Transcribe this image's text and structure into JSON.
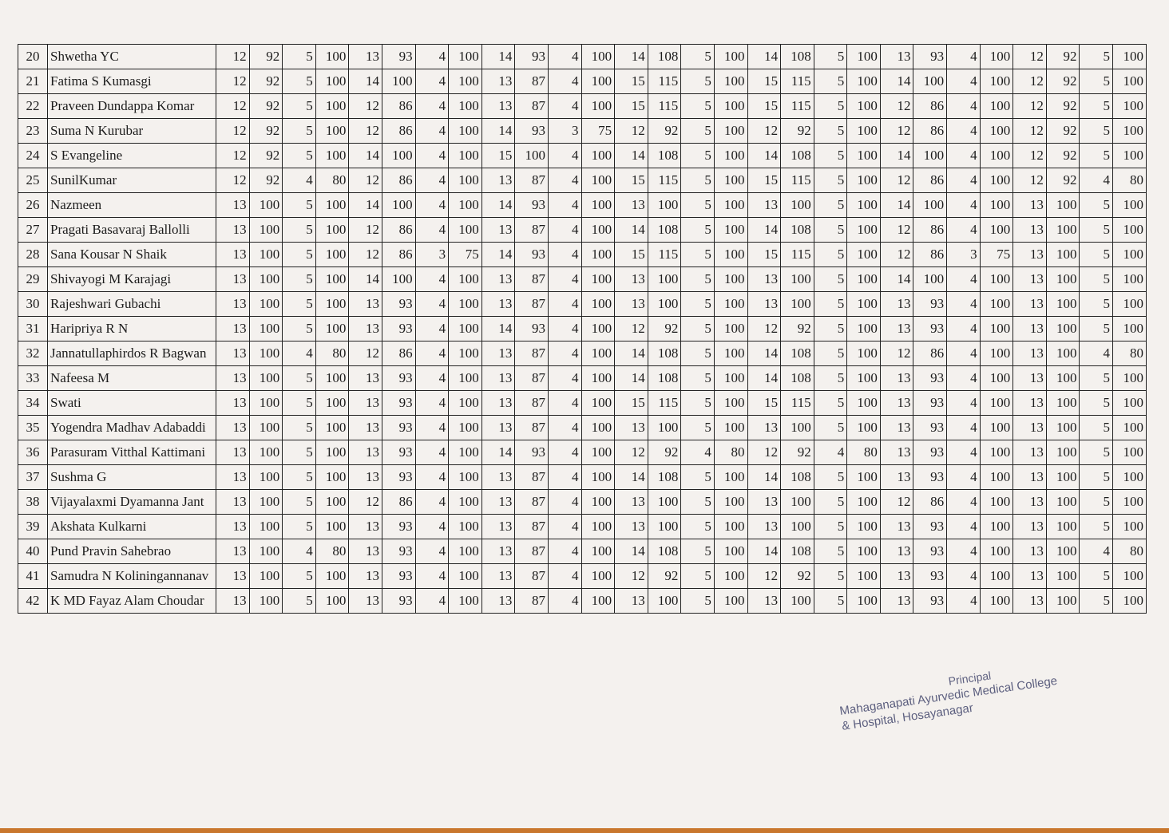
{
  "table": {
    "rows": [
      {
        "sn": 20,
        "name": "Shwetha YC",
        "cells": [
          12,
          92,
          5,
          100,
          13,
          93,
          4,
          100,
          14,
          93,
          4,
          100,
          14,
          108,
          5,
          100,
          14,
          108,
          5,
          100,
          13,
          93,
          4,
          100,
          12,
          92,
          5,
          100
        ]
      },
      {
        "sn": 21,
        "name": "Fatima S Kumasgi",
        "cells": [
          12,
          92,
          5,
          100,
          14,
          100,
          4,
          100,
          13,
          87,
          4,
          100,
          15,
          115,
          5,
          100,
          15,
          115,
          5,
          100,
          14,
          100,
          4,
          100,
          12,
          92,
          5,
          100
        ]
      },
      {
        "sn": 22,
        "name": "Praveen Dundappa Komar",
        "cells": [
          12,
          92,
          5,
          100,
          12,
          86,
          4,
          100,
          13,
          87,
          4,
          100,
          15,
          115,
          5,
          100,
          15,
          115,
          5,
          100,
          12,
          86,
          4,
          100,
          12,
          92,
          5,
          100
        ]
      },
      {
        "sn": 23,
        "name": "Suma N Kurubar",
        "cells": [
          12,
          92,
          5,
          100,
          12,
          86,
          4,
          100,
          14,
          93,
          3,
          75,
          12,
          92,
          5,
          100,
          12,
          92,
          5,
          100,
          12,
          86,
          4,
          100,
          12,
          92,
          5,
          100
        ]
      },
      {
        "sn": 24,
        "name": "S Evangeline",
        "cells": [
          12,
          92,
          5,
          100,
          14,
          100,
          4,
          100,
          15,
          100,
          4,
          100,
          14,
          108,
          5,
          100,
          14,
          108,
          5,
          100,
          14,
          100,
          4,
          100,
          12,
          92,
          5,
          100
        ]
      },
      {
        "sn": 25,
        "name": "SunilKumar",
        "cells": [
          12,
          92,
          4,
          80,
          12,
          86,
          4,
          100,
          13,
          87,
          4,
          100,
          15,
          115,
          5,
          100,
          15,
          115,
          5,
          100,
          12,
          86,
          4,
          100,
          12,
          92,
          4,
          80
        ]
      },
      {
        "sn": 26,
        "name": "Nazmeen",
        "cells": [
          13,
          100,
          5,
          100,
          14,
          100,
          4,
          100,
          14,
          93,
          4,
          100,
          13,
          100,
          5,
          100,
          13,
          100,
          5,
          100,
          14,
          100,
          4,
          100,
          13,
          100,
          5,
          100
        ]
      },
      {
        "sn": 27,
        "name": "Pragati Basavaraj Ballolli",
        "cells": [
          13,
          100,
          5,
          100,
          12,
          86,
          4,
          100,
          13,
          87,
          4,
          100,
          14,
          108,
          5,
          100,
          14,
          108,
          5,
          100,
          12,
          86,
          4,
          100,
          13,
          100,
          5,
          100
        ]
      },
      {
        "sn": 28,
        "name": "Sana Kousar N Shaik",
        "cells": [
          13,
          100,
          5,
          100,
          12,
          86,
          3,
          75,
          14,
          93,
          4,
          100,
          15,
          115,
          5,
          100,
          15,
          115,
          5,
          100,
          12,
          86,
          3,
          75,
          13,
          100,
          5,
          100
        ]
      },
      {
        "sn": 29,
        "name": "Shivayogi M Karajagi",
        "cells": [
          13,
          100,
          5,
          100,
          14,
          100,
          4,
          100,
          13,
          87,
          4,
          100,
          13,
          100,
          5,
          100,
          13,
          100,
          5,
          100,
          14,
          100,
          4,
          100,
          13,
          100,
          5,
          100
        ]
      },
      {
        "sn": 30,
        "name": "Rajeshwari Gubachi",
        "cells": [
          13,
          100,
          5,
          100,
          13,
          93,
          4,
          100,
          13,
          87,
          4,
          100,
          13,
          100,
          5,
          100,
          13,
          100,
          5,
          100,
          13,
          93,
          4,
          100,
          13,
          100,
          5,
          100
        ]
      },
      {
        "sn": 31,
        "name": "Haripriya R N",
        "cells": [
          13,
          100,
          5,
          100,
          13,
          93,
          4,
          100,
          14,
          93,
          4,
          100,
          12,
          92,
          5,
          100,
          12,
          92,
          5,
          100,
          13,
          93,
          4,
          100,
          13,
          100,
          5,
          100
        ]
      },
      {
        "sn": 32,
        "name": "Jannatullaphirdos R Bagwan",
        "cells": [
          13,
          100,
          4,
          80,
          12,
          86,
          4,
          100,
          13,
          87,
          4,
          100,
          14,
          108,
          5,
          100,
          14,
          108,
          5,
          100,
          12,
          86,
          4,
          100,
          13,
          100,
          4,
          80
        ]
      },
      {
        "sn": 33,
        "name": "Nafeesa M",
        "cells": [
          13,
          100,
          5,
          100,
          13,
          93,
          4,
          100,
          13,
          87,
          4,
          100,
          14,
          108,
          5,
          100,
          14,
          108,
          5,
          100,
          13,
          93,
          4,
          100,
          13,
          100,
          5,
          100
        ]
      },
      {
        "sn": 34,
        "name": "Swati",
        "cells": [
          13,
          100,
          5,
          100,
          13,
          93,
          4,
          100,
          13,
          87,
          4,
          100,
          15,
          115,
          5,
          100,
          15,
          115,
          5,
          100,
          13,
          93,
          4,
          100,
          13,
          100,
          5,
          100
        ]
      },
      {
        "sn": 35,
        "name": "Yogendra Madhav Adabaddi",
        "cells": [
          13,
          100,
          5,
          100,
          13,
          93,
          4,
          100,
          13,
          87,
          4,
          100,
          13,
          100,
          5,
          100,
          13,
          100,
          5,
          100,
          13,
          93,
          4,
          100,
          13,
          100,
          5,
          100
        ]
      },
      {
        "sn": 36,
        "name": "Parasuram Vitthal Kattimani",
        "cells": [
          13,
          100,
          5,
          100,
          13,
          93,
          4,
          100,
          14,
          93,
          4,
          100,
          12,
          92,
          4,
          80,
          12,
          92,
          4,
          80,
          13,
          93,
          4,
          100,
          13,
          100,
          5,
          100
        ]
      },
      {
        "sn": 37,
        "name": "Sushma G",
        "cells": [
          13,
          100,
          5,
          100,
          13,
          93,
          4,
          100,
          13,
          87,
          4,
          100,
          14,
          108,
          5,
          100,
          14,
          108,
          5,
          100,
          13,
          93,
          4,
          100,
          13,
          100,
          5,
          100
        ]
      },
      {
        "sn": 38,
        "name": "Vijayalaxmi Dyamanna Jant",
        "cells": [
          13,
          100,
          5,
          100,
          12,
          86,
          4,
          100,
          13,
          87,
          4,
          100,
          13,
          100,
          5,
          100,
          13,
          100,
          5,
          100,
          12,
          86,
          4,
          100,
          13,
          100,
          5,
          100
        ]
      },
      {
        "sn": 39,
        "name": "Akshata Kulkarni",
        "cells": [
          13,
          100,
          5,
          100,
          13,
          93,
          4,
          100,
          13,
          87,
          4,
          100,
          13,
          100,
          5,
          100,
          13,
          100,
          5,
          100,
          13,
          93,
          4,
          100,
          13,
          100,
          5,
          100
        ]
      },
      {
        "sn": 40,
        "name": "Pund Pravin Sahebrao",
        "cells": [
          13,
          100,
          4,
          80,
          13,
          93,
          4,
          100,
          13,
          87,
          4,
          100,
          14,
          108,
          5,
          100,
          14,
          108,
          5,
          100,
          13,
          93,
          4,
          100,
          13,
          100,
          4,
          80
        ]
      },
      {
        "sn": 41,
        "name": "Samudra N Koliningannanav",
        "cells": [
          13,
          100,
          5,
          100,
          13,
          93,
          4,
          100,
          13,
          87,
          4,
          100,
          12,
          92,
          5,
          100,
          12,
          92,
          5,
          100,
          13,
          93,
          4,
          100,
          13,
          100,
          5,
          100
        ]
      },
      {
        "sn": 42,
        "name": "K MD Fayaz Alam Choudar",
        "cells": [
          13,
          100,
          5,
          100,
          13,
          93,
          4,
          100,
          13,
          87,
          4,
          100,
          13,
          100,
          5,
          100,
          13,
          100,
          5,
          100,
          13,
          93,
          4,
          100,
          13,
          100,
          5,
          100
        ]
      }
    ]
  },
  "stamp": {
    "title": "Principal",
    "line1": "Mahaganapati Ayurvedic Medical College",
    "line2": "& Hospital, Hosayanagar"
  }
}
